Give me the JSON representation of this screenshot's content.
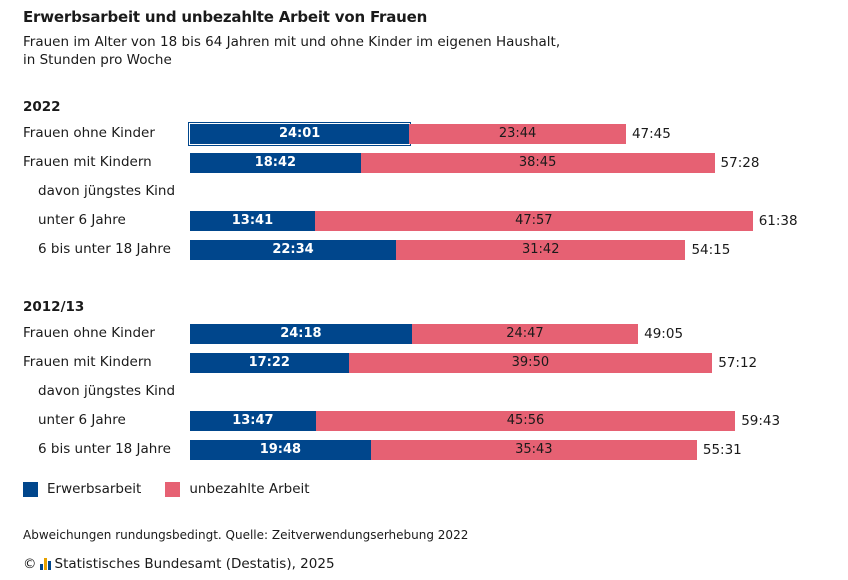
{
  "title": "Erwerbsarbeit und unbezahlte Arbeit von Frauen",
  "subtitle_line1": "Frauen im Alter von 18 bis 64 Jahren mit und ohne Kinder im eigenen Haushalt,",
  "subtitle_line2": "in Stunden pro Woche",
  "colors": {
    "paid": "#00468c",
    "unpaid": "#e66173"
  },
  "chart_data": {
    "type": "bar",
    "orientation": "horizontal",
    "stacked": true,
    "title": "Erwerbsarbeit und unbezahlte Arbeit von Frauen",
    "unit": "Stunden pro Woche (hh:mm)",
    "series_names": [
      "Erwerbsarbeit",
      "unbezahlte Arbeit"
    ],
    "groups": [
      {
        "name": "2022",
        "rows": [
          {
            "label": "Frauen ohne Kinder",
            "paid": "24:01",
            "unpaid": "23:44",
            "total": "47:45",
            "highlighted": true
          },
          {
            "label": "Frauen mit Kindern",
            "paid": "18:42",
            "unpaid": "38:45",
            "total": "57:28"
          },
          {
            "label": "davon jüngstes Kind",
            "header": true
          },
          {
            "label": "unter 6 Jahre",
            "paid": "13:41",
            "unpaid": "47:57",
            "total": "61:38"
          },
          {
            "label": "6 bis unter 18 Jahre",
            "paid": "22:34",
            "unpaid": "31:42",
            "total": "54:15"
          }
        ]
      },
      {
        "name": "2012/13",
        "rows": [
          {
            "label": "Frauen ohne Kinder",
            "paid": "24:18",
            "unpaid": "24:47",
            "total": "49:05"
          },
          {
            "label": "Frauen mit Kindern",
            "paid": "17:22",
            "unpaid": "39:50",
            "total": "57:12"
          },
          {
            "label": "davon jüngstes Kind",
            "header": true
          },
          {
            "label": "unter 6 Jahre",
            "paid": "13:47",
            "unpaid": "45:56",
            "total": "59:43"
          },
          {
            "label": "6 bis unter 18 Jahre",
            "paid": "19:48",
            "unpaid": "35:43",
            "total": "55:31"
          }
        ]
      }
    ]
  },
  "legend": {
    "paid_label": "Erwerbsarbeit",
    "unpaid_label": "unbezahlte Arbeit"
  },
  "footnote": "Abweichungen rundungsbedingt. Quelle: Zeitverwendungserhebung 2022",
  "credit": {
    "copyright_symbol": "©",
    "text": "Statistisches Bundesamt (Destatis), 2025",
    "logo_text": "Destatis"
  }
}
